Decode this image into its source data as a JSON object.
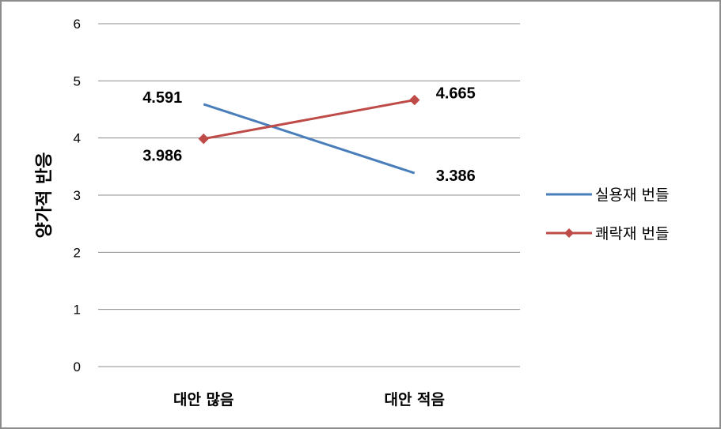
{
  "chart_data": {
    "type": "line",
    "categories": [
      "대안 많음",
      "대안 적음"
    ],
    "ylabel": "양가적 반응",
    "ylim": [
      0,
      6
    ],
    "yticks": [
      0,
      1,
      2,
      3,
      4,
      5,
      6
    ],
    "grid": true,
    "legend_position": "right",
    "series": [
      {
        "name": "실용재 번들",
        "values": [
          4.591,
          3.386
        ],
        "labels": [
          "4.591",
          "3.386"
        ],
        "color": "#4a7ebb",
        "marker": "none"
      },
      {
        "name": "쾌락재 번들",
        "values": [
          3.986,
          4.665
        ],
        "labels": [
          "3.986",
          "4.665"
        ],
        "color": "#be4b48",
        "marker": "diamond"
      }
    ]
  }
}
